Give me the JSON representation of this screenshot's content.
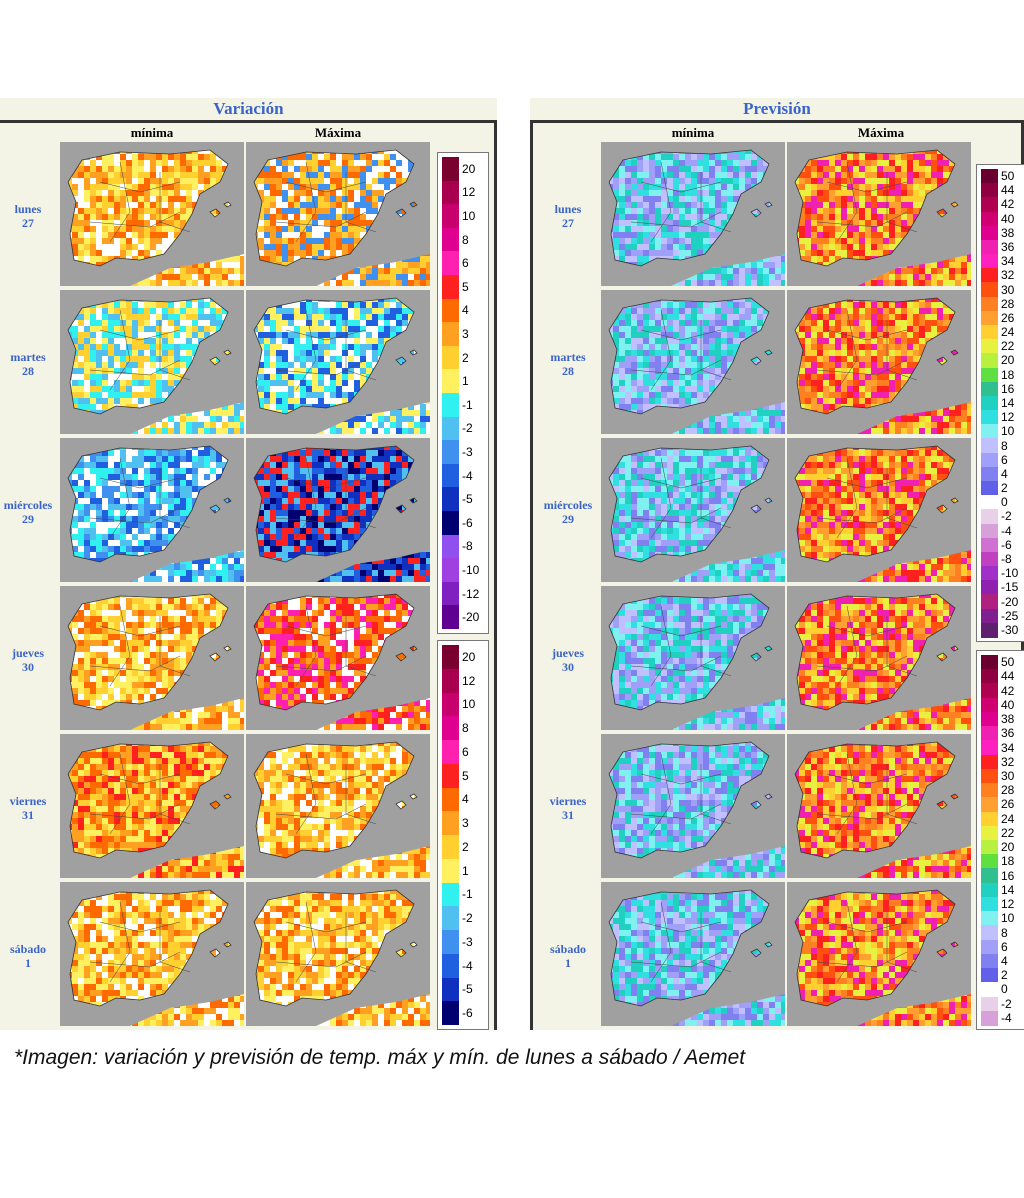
{
  "panels": {
    "left_title": "Variación",
    "right_title": "Previsión",
    "col_min": "mínima",
    "col_max": "Máxima"
  },
  "days": [
    {
      "name": "lunes",
      "num": "27"
    },
    {
      "name": "martes",
      "num": "28"
    },
    {
      "name": "miércoles",
      "num": "29"
    },
    {
      "name": "jueves",
      "num": "30"
    },
    {
      "name": "viernes",
      "num": "31"
    },
    {
      "name": "sábado",
      "num": "1"
    }
  ],
  "variation_legend": {
    "labels": [
      "20",
      "12",
      "10",
      "8",
      "6",
      "5",
      "4",
      "3",
      "2",
      "1",
      "-1",
      "-2",
      "-3",
      "-4",
      "-5",
      "-6",
      "-8",
      "-10",
      "-12",
      "-20"
    ],
    "colors": [
      "#7a0030",
      "#a8004f",
      "#c8006e",
      "#e0008f",
      "#ff20b0",
      "#ff2020",
      "#ff6a00",
      "#ffa020",
      "#ffd030",
      "#fff060",
      "#30f0f0",
      "#50c0f0",
      "#4090f0",
      "#2060e0",
      "#1030c0",
      "#000070",
      "#9050f0",
      "#a040e0",
      "#8020c0",
      "#600090"
    ]
  },
  "forecast_legend": {
    "labels": [
      "50",
      "44",
      "42",
      "40",
      "38",
      "36",
      "34",
      "32",
      "30",
      "28",
      "26",
      "24",
      "22",
      "20",
      "18",
      "16",
      "14",
      "12",
      "10",
      "8",
      "6",
      "4",
      "2",
      "0",
      "-2",
      "-4",
      "-6",
      "-8",
      "-10",
      "-15",
      "-20",
      "-25",
      "-30"
    ],
    "colors": [
      "#6a0030",
      "#900040",
      "#b00050",
      "#d00070",
      "#e00090",
      "#f020b0",
      "#ff20c0",
      "#ff2020",
      "#ff5010",
      "#ff8020",
      "#ffa030",
      "#ffd030",
      "#e8f040",
      "#b8f040",
      "#60e040",
      "#30c090",
      "#20d0c0",
      "#30e0e0",
      "#80f0f0",
      "#c0c0ff",
      "#a0a0f8",
      "#8080f0",
      "#6060e8",
      "#ffffff",
      "#e8d0e8",
      "#d8a0d8",
      "#d070d0",
      "#c040c0",
      "#a030c8",
      "#9020b0",
      "#b02080",
      "#802090",
      "#602070"
    ]
  },
  "colors": {
    "title_blue": "#3a64c8",
    "frame_bg": "#f4f4e6",
    "sea_gray": "#a0a0a0"
  },
  "caption": "*Imagen: variación y previsión de temp. máx y mín. de lunes a sábado / Aemet"
}
